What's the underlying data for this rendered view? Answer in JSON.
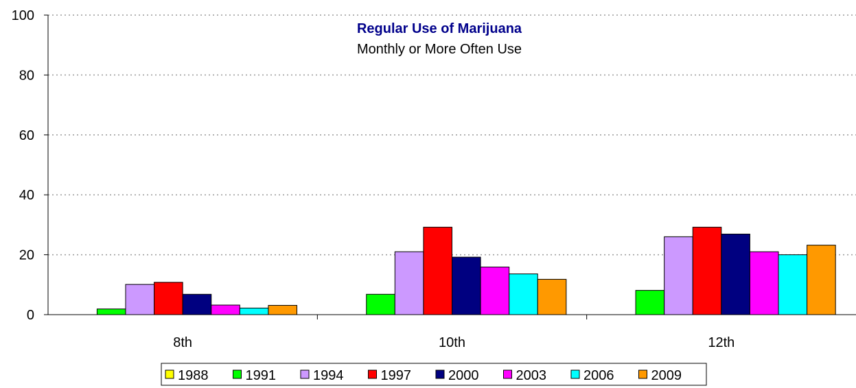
{
  "chart_data": {
    "type": "bar",
    "title": "Regular Use of Marijuana",
    "subtitle": "Monthly or More Often Use",
    "xlabel": "",
    "ylabel": "",
    "categories": [
      "8th",
      "10th",
      "12th"
    ],
    "ylim": [
      0,
      100
    ],
    "yticks": [
      "0",
      "20",
      "40",
      "60",
      "80",
      "100"
    ],
    "grid": true,
    "legend_position": "bottom",
    "series": [
      {
        "name": "1988",
        "color": "#FFFF00",
        "values": [
          null,
          null,
          null
        ]
      },
      {
        "name": "1991",
        "color": "#00FF00",
        "values": [
          1.9,
          6.8,
          8.1
        ]
      },
      {
        "name": "1994",
        "color": "#CC99FF",
        "values": [
          10.1,
          21.0,
          26.0
        ]
      },
      {
        "name": "1997",
        "color": "#FF0000",
        "values": [
          10.8,
          29.2,
          29.2
        ]
      },
      {
        "name": "2000",
        "color": "#000080",
        "values": [
          6.8,
          19.2,
          26.9
        ]
      },
      {
        "name": "2003",
        "color": "#FF00FF",
        "values": [
          3.2,
          15.9,
          21.0
        ]
      },
      {
        "name": "2006",
        "color": "#00FFFF",
        "values": [
          2.2,
          13.6,
          20.0
        ]
      },
      {
        "name": "2009",
        "color": "#FF9900",
        "values": [
          3.1,
          11.8,
          23.2
        ]
      }
    ]
  }
}
